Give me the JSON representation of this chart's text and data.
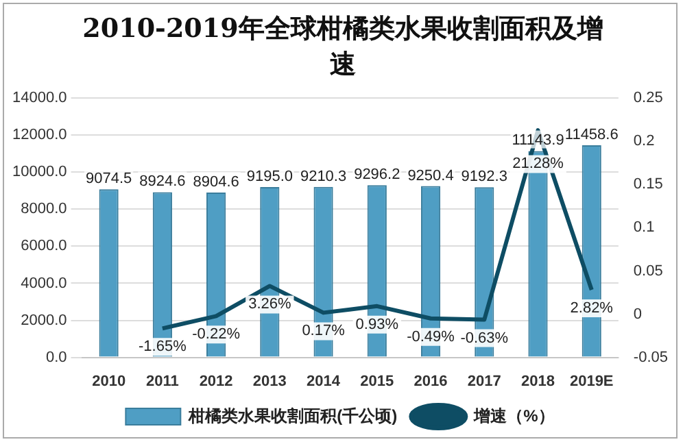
{
  "chart_data": {
    "type": "bar",
    "title": "2010-2019年全球柑橘类水果收割面积及增速",
    "categories": [
      "2010",
      "2011",
      "2012",
      "2013",
      "2014",
      "2015",
      "2016",
      "2017",
      "2018",
      "2019E"
    ],
    "series": [
      {
        "name": "柑橘类水果收割面积(千公顷)",
        "color": "#4f9ec4",
        "values": [
          9074.5,
          8924.6,
          8904.6,
          9195.0,
          9210.3,
          9296.2,
          9250.4,
          9192.3,
          11143.9,
          11458.6
        ],
        "value_labels": [
          "9074.5",
          "8924.6",
          "8904.6",
          "9195.0",
          "9210.3",
          "9296.2",
          "9250.4",
          "9192.3",
          "11143.9",
          "11458.6"
        ]
      },
      {
        "name": "增速（%）",
        "type": "line",
        "axis": "y2",
        "color": "#0e4d64",
        "values": [
          null,
          -0.0165,
          -0.0022,
          0.0326,
          0.0017,
          0.0093,
          -0.0049,
          -0.0063,
          0.2128,
          0.0282
        ],
        "value_labels": [
          null,
          "-1.65%",
          "-0.22%",
          "3.26%",
          "0.17%",
          "0.93%",
          "-0.49%",
          "-0.63%",
          "21.28%",
          "2.82%"
        ]
      }
    ],
    "ylim": [
      0,
      14000
    ],
    "yticks": [
      {
        "value": 0,
        "label": "0.0"
      },
      {
        "value": 2000,
        "label": "2000.0"
      },
      {
        "value": 4000,
        "label": "4000.0"
      },
      {
        "value": 6000,
        "label": "6000.0"
      },
      {
        "value": 8000,
        "label": "8000.0"
      },
      {
        "value": 10000,
        "label": "10000.0"
      },
      {
        "value": 12000,
        "label": "12000.0"
      },
      {
        "value": 14000,
        "label": "14000.0"
      }
    ],
    "y2lim": [
      -0.05,
      0.25
    ],
    "y2ticks": [
      -0.05,
      0,
      0.05,
      0.1,
      0.15,
      0.2,
      0.25
    ],
    "grid": "y",
    "legend": "bottom",
    "marker": "none",
    "line_style": "solid"
  }
}
